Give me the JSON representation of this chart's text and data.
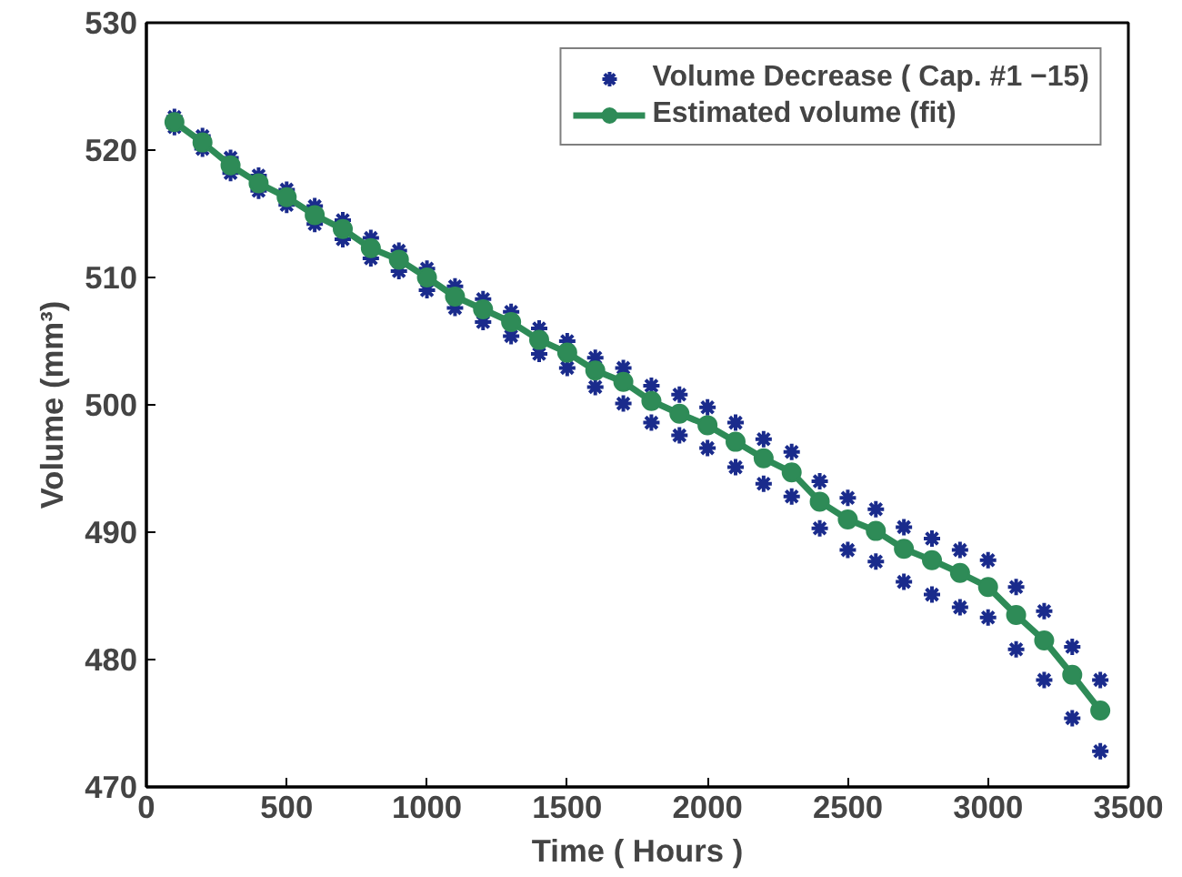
{
  "chart_data": {
    "type": "scatter",
    "xlabel": "Time ( Hours )",
    "ylabel": "Volume (mm³)",
    "xlim": [
      0,
      3500
    ],
    "ylim": [
      470,
      530
    ],
    "xticks": [
      0,
      500,
      1000,
      1500,
      2000,
      2500,
      3000,
      3500
    ],
    "yticks": [
      470,
      480,
      490,
      500,
      510,
      520,
      530
    ],
    "grid": false,
    "legend": "top right",
    "series": [
      {
        "name": "Volume Decrease ( Cap. #1 −15)",
        "marker": "cross",
        "color": "#1a2b8c",
        "x": [
          100,
          100,
          200,
          200,
          300,
          300,
          400,
          400,
          500,
          500,
          600,
          600,
          700,
          700,
          800,
          800,
          900,
          900,
          1000,
          1000,
          1100,
          1100,
          1200,
          1200,
          1300,
          1300,
          1400,
          1400,
          1500,
          1500,
          1600,
          1600,
          1700,
          1700,
          1800,
          1800,
          1900,
          1900,
          2000,
          2000,
          2100,
          2100,
          2200,
          2200,
          2300,
          2300,
          2400,
          2400,
          2500,
          2500,
          2600,
          2600,
          2700,
          2700,
          2800,
          2800,
          2900,
          2900,
          3000,
          3000,
          3100,
          3100,
          3200,
          3200,
          3300,
          3300,
          3400,
          3400
        ],
        "values": [
          522.6,
          521.8,
          521.1,
          520.1,
          519.4,
          518.2,
          518.0,
          516.8,
          516.9,
          515.7,
          515.6,
          514.2,
          514.5,
          513.0,
          513.1,
          511.5,
          512.1,
          510.5,
          510.7,
          509.0,
          509.3,
          507.6,
          508.3,
          506.5,
          507.3,
          505.4,
          506.0,
          504.0,
          505.0,
          502.9,
          503.7,
          501.4,
          502.9,
          500.1,
          501.5,
          498.6,
          500.8,
          497.6,
          499.8,
          496.6,
          498.6,
          495.1,
          497.3,
          493.8,
          496.3,
          492.8,
          494.0,
          490.3,
          492.7,
          488.6,
          491.8,
          487.7,
          490.4,
          486.1,
          489.5,
          485.1,
          488.6,
          484.1,
          487.8,
          483.3,
          485.7,
          480.8,
          483.8,
          478.4,
          481.0,
          475.4,
          478.4,
          472.8
        ]
      },
      {
        "name": "Estimated volume (fit)",
        "type": "line",
        "marker": "circle",
        "line_style": "solid",
        "color": "#2e8b57",
        "x": [
          100,
          200,
          300,
          400,
          500,
          600,
          700,
          800,
          900,
          1000,
          1100,
          1200,
          1300,
          1400,
          1500,
          1600,
          1700,
          1800,
          1900,
          2000,
          2100,
          2200,
          2300,
          2400,
          2500,
          2600,
          2700,
          2800,
          2900,
          3000,
          3100,
          3200,
          3300,
          3400
        ],
        "values": [
          522.2,
          520.6,
          518.8,
          517.4,
          516.3,
          514.9,
          513.8,
          512.3,
          511.4,
          510.0,
          508.5,
          507.5,
          506.5,
          505.1,
          504.1,
          502.7,
          501.8,
          500.3,
          499.3,
          498.4,
          497.1,
          495.8,
          494.7,
          492.4,
          491.0,
          490.1,
          488.7,
          487.8,
          486.8,
          485.7,
          483.5,
          481.5,
          478.8,
          476.0
        ]
      }
    ]
  }
}
